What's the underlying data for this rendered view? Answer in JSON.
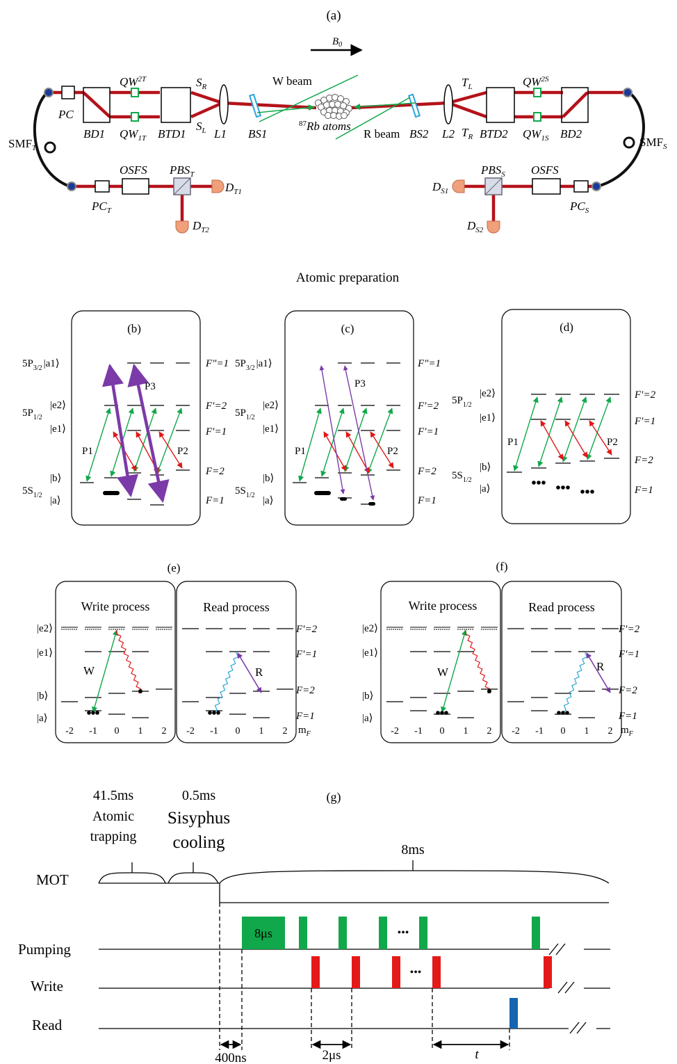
{
  "panel_a": {
    "label": "(a)",
    "field": "B",
    "field_sub": "0",
    "pc": "PC",
    "bd1": "BD1",
    "btd1": "BTD1",
    "qw2t": "QW",
    "qw2t_sub": "2T",
    "qw1t": "QW",
    "qw1t_sub": "1T",
    "sr": "S",
    "sr_sub": "R",
    "sl": "S",
    "sl_sub": "L",
    "l1": "L1",
    "bs1": "BS1",
    "w_beam": "W beam",
    "atoms_sup": "87",
    "atoms": "Rb atoms",
    "r_beam": "R beam",
    "bs2": "BS2",
    "l2": "L2",
    "tl": "T",
    "tl_sub": "L",
    "tr": "T",
    "tr_sub": "R",
    "btd2": "BTD2",
    "qw2s": "QW",
    "qw2s_sub": "2S",
    "qw1s": "QW",
    "qw1s_sub": "1S",
    "bd2": "BD2",
    "smft": "SMF",
    "smft_sub": "T",
    "smfs": "SMF",
    "smfs_sub": "S",
    "pct": "PC",
    "pct_sub": "T",
    "osfs_left": "OSFS",
    "pbst": "PBS",
    "pbst_sub": "T",
    "dt1": "D",
    "dt1_sub": "T1",
    "dt2": "D",
    "dt2_sub": "T2",
    "ds1": "D",
    "ds1_sub": "S1",
    "pbss": "PBS",
    "pbss_sub": "S",
    "osfs_right": "OSFS",
    "pcs": "PC",
    "pcs_sub": "S",
    "ds2": "D",
    "ds2_sub": "S2"
  },
  "atomic_preparation": "Atomic preparation",
  "levels": {
    "p32": "5P",
    "p32_frac": "3/2",
    "p12": "5P",
    "p12_frac": "1/2",
    "s12": "5S",
    "s12_frac": "1/2",
    "a1": "|a1⟩",
    "e2": "|e2⟩",
    "e1": "|e1⟩",
    "b": "|b⟩",
    "a": "|a⟩",
    "f3": "F″=1",
    "fp2": "F′=2",
    "fp1": "F′=1",
    "f2": "F=2",
    "f1": "F=1",
    "mf": "mF"
  },
  "panel_b": {
    "label": "(b)",
    "p1": "P1",
    "p2": "P2",
    "p3": "P3"
  },
  "panel_c": {
    "label": "(c)",
    "p1": "P1",
    "p2": "P2",
    "p3": "P3"
  },
  "panel_d": {
    "label": "(d)",
    "p1": "P1",
    "p2": "P2"
  },
  "panel_e": {
    "label": "(e)",
    "write": "Write process",
    "read": "Read process",
    "w": "W",
    "r": "R"
  },
  "panel_f": {
    "label": "(f)",
    "write": "Write process",
    "read": "Read process",
    "w": "W",
    "r": "R"
  },
  "mf_ticks": [
    "-2",
    "-1",
    "0",
    "1",
    "2"
  ],
  "panel_g": {
    "label": "(g)",
    "trap_time": "41.5ms",
    "trap_l1": "Atomic",
    "trap_l2": "trapping",
    "sis_time": "0.5ms",
    "sis_l1": "Sisyphus",
    "sis_l2": "cooling",
    "window": "8ms",
    "mot": "MOT",
    "pumping": "Pumping",
    "write": "Write",
    "read": "Read",
    "pulse8": "8μs",
    "dots": "•••",
    "d400": "400ns",
    "d2": "2μs",
    "dt": "t"
  },
  "colors": {
    "red_beam": "#b5121b",
    "green": "#10a84a",
    "red": "#e01818",
    "purple": "#7b3aa8",
    "blue": "#1565b0",
    "cyan": "#2aa4d8",
    "detector": "#f0a07a"
  }
}
